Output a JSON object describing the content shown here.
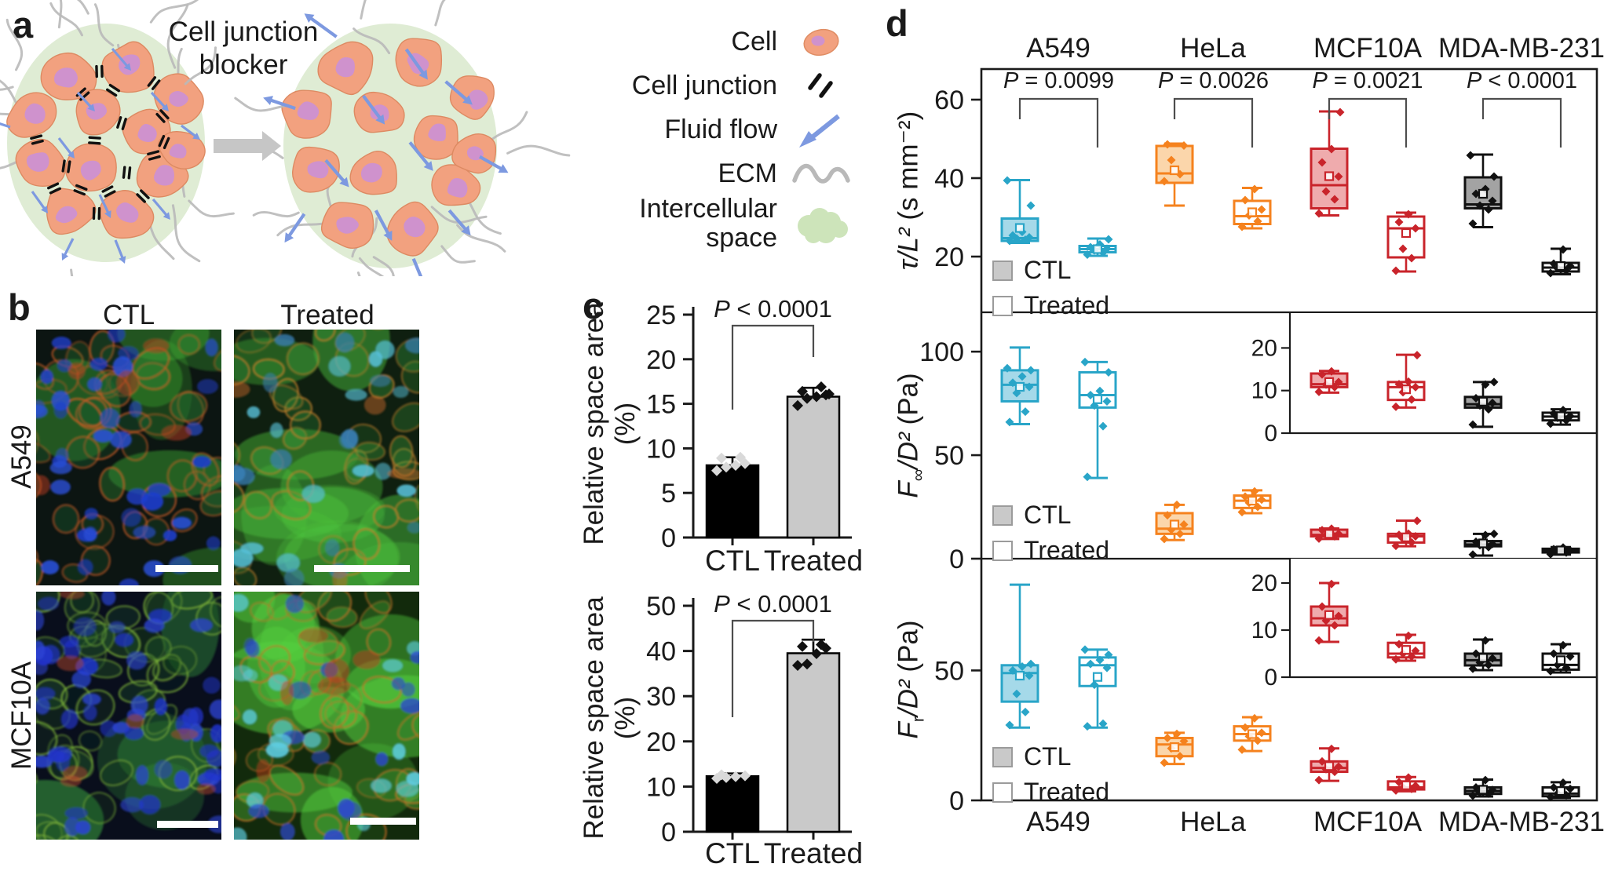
{
  "figure": {
    "panel_labels": {
      "a": "a",
      "b": "b",
      "c": "c",
      "d": "d"
    }
  },
  "panel_a": {
    "blocker_line1": "Cell junction",
    "blocker_line2": "blocker",
    "legend": [
      {
        "label": "Cell",
        "icon": "cell-icon"
      },
      {
        "label": "Cell junction",
        "icon": "cell-junction-icon"
      },
      {
        "label": "Fluid flow",
        "icon": "fluid-flow-arrow-icon"
      },
      {
        "label": "ECM",
        "icon": "ecm-squiggle-icon"
      },
      {
        "label": "Intercellular space",
        "icon": "intercellular-space-icon"
      }
    ],
    "colors": {
      "cell": "#f2a17f",
      "nucleus": "#cf92cd",
      "intercellular_space": "#dfecd4",
      "fluid_arrow": "#7d99e0",
      "ecm": "#b9b9b9",
      "junction": "#111111"
    }
  },
  "panel_b": {
    "col_headers": [
      "CTL",
      "Treated"
    ],
    "row_labels": [
      "A549",
      "MCF10A"
    ]
  },
  "panel_d": {
    "col_headers": [
      "A549",
      "HeLa",
      "MCF10A",
      "MDA-MB-231"
    ],
    "x_labels": [
      "A549",
      "HeLa",
      "MCF10A",
      "MDA-MB-231"
    ],
    "legend": {
      "ctl": "CTL",
      "treated": "Treated"
    },
    "rows_meta": [
      {
        "var": "τ/L²",
        "sub": "",
        "mid": "",
        "units": " (s mm⁻²)"
      },
      {
        "var": "F",
        "sub": "∞",
        "mid": "/D²",
        "units": " (Pa)"
      },
      {
        "var": "F",
        "sub": "r",
        "mid": "/D²",
        "units": " (Pa)"
      }
    ]
  },
  "chart_data": [
    {
      "type": "bar",
      "panel": "c-top",
      "categories": [
        "CTL",
        "Treated"
      ],
      "values": [
        8.1,
        15.8
      ],
      "errors": [
        0.9,
        1.0
      ],
      "points": [
        [
          7.5,
          7.9,
          8.1,
          8.3,
          8.9,
          9.0
        ],
        [
          14.8,
          15.6,
          15.8,
          16.0,
          16.4,
          16.9,
          16.1
        ]
      ],
      "bar_colors": [
        "#000000",
        "#c9c9c9"
      ],
      "point_colors": [
        "#d9d9d9",
        "#111111"
      ],
      "ylabel": "Relative space area (%)",
      "ylim": [
        0,
        25
      ],
      "yticks": [
        0,
        5,
        10,
        15,
        20,
        25
      ],
      "p_prefix": "P",
      "p_label": "< 0.0001"
    },
    {
      "type": "bar",
      "panel": "c-bottom",
      "categories": [
        "CTL",
        "Treated"
      ],
      "values": [
        12.3,
        39.5
      ],
      "errors": [
        0.6,
        3.0
      ],
      "points": [
        [
          11.8,
          12.0,
          12.2,
          12.4,
          12.6
        ],
        [
          36.8,
          37.1,
          39.4,
          40.6,
          41.0,
          41.4
        ]
      ],
      "bar_colors": [
        "#000000",
        "#c9c9c9"
      ],
      "point_colors": [
        "#d9d9d9",
        "#111111"
      ],
      "ylabel": "Relative space area (%)",
      "ylim": [
        0,
        50
      ],
      "yticks": [
        0,
        10,
        20,
        30,
        40,
        50
      ],
      "p_prefix": "P",
      "p_label": "< 0.0001"
    },
    {
      "type": "box",
      "panel": "d",
      "groups": [
        "A549",
        "HeLa",
        "MCF10A",
        "MDA-MB-231"
      ],
      "conditions": [
        "CTL",
        "Treated"
      ],
      "legend": [
        "CTL",
        "Treated"
      ],
      "colors": {
        "A549": {
          "line": "#29a5c8",
          "fill": "#a5d9e9"
        },
        "HeLa": {
          "line": "#f5821e",
          "fill": "#fbd6ab"
        },
        "MCF10A": {
          "line": "#c9242b",
          "fill": "#efabad"
        },
        "MDA-MB-231": {
          "line": "#111111",
          "fill": "#a3a3a3"
        }
      },
      "p_prefix": "P",
      "rows": [
        {
          "ylabel": "τ/L² (s mm⁻²)",
          "ylim": [
            5.8,
            67.8
          ],
          "yticks": [
            20,
            40,
            60
          ],
          "p_values": [
            "= 0.0099",
            "= 0.0026",
            "= 0.0021",
            "< 0.0001"
          ],
          "boxes": {
            "A549": {
              "CTL": {
                "lo": 23.5,
                "q1": 24,
                "med": 24.7,
                "q3": 29.7,
                "hi": 39.5,
                "mean": 27.3,
                "pts": [
                  24,
                  24.3,
                  24.6,
                  24.9,
                  25.4,
                  26.3,
                  33,
                  39.4
                ]
              },
              "Treated": {
                "lo": 20.2,
                "q1": 21.1,
                "med": 21.9,
                "q3": 22.7,
                "hi": 24.6,
                "mean": 21.9,
                "pts": [
                  20.5,
                  21,
                  21.6,
                  22,
                  22.4,
                  23.1,
                  24.4
                ]
              }
            },
            "HeLa": {
              "CTL": {
                "lo": 33,
                "q1": 38.8,
                "med": 41.2,
                "q3": 48.2,
                "hi": 48.8,
                "mean": 42,
                "pts": [
                  39.2,
                  41,
                  44.6,
                  48.3,
                  48.6
                ]
              },
              "Treated": {
                "lo": 27.2,
                "q1": 28.3,
                "med": 30.3,
                "q3": 34.2,
                "hi": 37.5,
                "mean": 31.3,
                "pts": [
                  27.6,
                  29,
                  30.5,
                  32,
                  34.4,
                  37.2
                ]
              }
            },
            "MCF10A": {
              "CTL": {
                "lo": 30.5,
                "q1": 32.3,
                "med": 38.2,
                "q3": 47.5,
                "hi": 57,
                "mean": 40.5,
                "pts": [
                  31,
                  34.6,
                  36.6,
                  40.4,
                  44,
                  47.4,
                  56.8
                ]
              },
              "Treated": {
                "lo": 16.2,
                "q1": 19.8,
                "med": 27.2,
                "q3": 30.2,
                "hi": 31.2,
                "mean": 26,
                "pts": [
                  16.4,
                  19.6,
                  22,
                  27.2,
                  28.8,
                  30.8
                ]
              }
            },
            "MDA-MB-231": {
              "CTL": {
                "lo": 27.5,
                "q1": 32.3,
                "med": 33.3,
                "q3": 40.2,
                "hi": 46,
                "mean": 36,
                "pts": [
                  28.4,
                  32,
                  33,
                  34.2,
                  36,
                  37.2,
                  40.4,
                  45.8
                ]
              },
              "Treated": {
                "lo": 15.5,
                "q1": 16.2,
                "med": 17.2,
                "q3": 18.4,
                "hi": 22,
                "mean": 17.6,
                "pts": [
                  15.8,
                  16.4,
                  17,
                  17.6,
                  18.2,
                  21.8
                ]
              }
            }
          }
        },
        {
          "ylabel": "F∞/D² (Pa)",
          "ylim": [
            0,
            119
          ],
          "yticks": [
            0,
            50,
            100
          ],
          "inset": {
            "groups": [
              "MCF10A",
              "MDA-MB-231"
            ],
            "ylim": [
              0,
              28
            ],
            "yticks": [
              0,
              10,
              20
            ]
          },
          "boxes": {
            "A549": {
              "CTL": {
                "lo": 65,
                "q1": 76,
                "med": 84,
                "q3": 91,
                "hi": 102,
                "mean": 83,
                "pts": [
                  66,
                  71,
                  80,
                  83,
                  85,
                  88,
                  91,
                  92
                ]
              },
              "Treated": {
                "lo": 39,
                "q1": 73,
                "med": 79,
                "q3": 90,
                "hi": 95,
                "mean": 77,
                "pts": [
                  39.5,
                  64,
                  74,
                  76,
                  79,
                  81,
                  90,
                  95
                ]
              }
            },
            "HeLa": {
              "CTL": {
                "lo": 9,
                "q1": 12,
                "med": 14.5,
                "q3": 22,
                "hi": 26,
                "mean": 16.5,
                "pts": [
                  9.5,
                  12,
                  14,
                  16.5,
                  21,
                  26
                ]
              },
              "Treated": {
                "lo": 22,
                "q1": 24.5,
                "med": 28,
                "q3": 30.5,
                "hi": 33,
                "mean": 28,
                "pts": [
                  22.5,
                  25,
                  27,
                  28.5,
                  30,
                  32.5
                ]
              }
            },
            "MCF10A": {
              "CTL": {
                "lo": 9.5,
                "q1": 10.8,
                "med": 11.5,
                "q3": 14,
                "hi": 14.6,
                "mean": 12,
                "pts": [
                  9.7,
                  10.8,
                  11.4,
                  12,
                  13.8,
                  14.5
                ]
              },
              "Treated": {
                "lo": 6,
                "q1": 7.8,
                "med": 10.8,
                "q3": 12,
                "hi": 18.4,
                "mean": 10.3,
                "pts": [
                  6.2,
                  7.9,
                  9.6,
                  10.8,
                  11.5,
                  12.1,
                  18.3
                ]
              }
            },
            "MDA-MB-231": {
              "CTL": {
                "lo": 1.5,
                "q1": 6,
                "med": 6.8,
                "q3": 8.5,
                "hi": 12,
                "mean": 7.4,
                "pts": [
                  2,
                  5.6,
                  6.5,
                  7.1,
                  8.2,
                  11.4,
                  12
                ]
              },
              "Treated": {
                "lo": 2,
                "q1": 3,
                "med": 3.9,
                "q3": 4.8,
                "hi": 5.6,
                "mean": 4,
                "pts": [
                  2.2,
                  3,
                  3.6,
                  4,
                  4.6,
                  5.4
                ]
              }
            }
          }
        },
        {
          "ylabel": "Fr/D² (Pa)",
          "ylim": [
            0,
            93
          ],
          "yticks": [
            0,
            50
          ],
          "inset": {
            "groups": [
              "MCF10A",
              "MDA-MB-231"
            ],
            "ylim": [
              0,
              25
            ],
            "yticks": [
              0,
              10,
              20
            ]
          },
          "boxes": {
            "A549": {
              "CTL": {
                "lo": 28,
                "q1": 38,
                "med": 49,
                "q3": 52,
                "hi": 83,
                "mean": 48,
                "pts": [
                  29,
                  34,
                  41,
                  48,
                  50,
                  51.5,
                  52.5
                ]
              },
              "Treated": {
                "lo": 28,
                "q1": 44,
                "med": 52,
                "q3": 55,
                "hi": 58,
                "mean": 47.5,
                "pts": [
                  28.5,
                  29.5,
                  44.5,
                  51,
                  52.5,
                  54,
                  56,
                  58
                ]
              }
            },
            "HeLa": {
              "CTL": {
                "lo": 14,
                "q1": 17,
                "med": 21.5,
                "q3": 24,
                "hi": 26,
                "mean": 20.5,
                "pts": [
                  14.5,
                  17,
                  20,
                  22.8,
                  24,
                  25.6
                ]
              },
              "Treated": {
                "lo": 19,
                "q1": 23,
                "med": 25.5,
                "q3": 28.5,
                "hi": 32,
                "mean": 25.5,
                "pts": [
                  19.5,
                  23,
                  24.6,
                  26,
                  28,
                  31.6
                ]
              }
            },
            "MCF10A": {
              "CTL": {
                "lo": 7.5,
                "q1": 11,
                "med": 12.5,
                "q3": 15,
                "hi": 20,
                "mean": 13.2,
                "pts": [
                  7.8,
                  11,
                  12,
                  13,
                  15,
                  19.8
                ]
              },
              "Treated": {
                "lo": 3.5,
                "q1": 4.2,
                "med": 5,
                "q3": 7.3,
                "hi": 9,
                "mean": 5.8,
                "pts": [
                  3.8,
                  4.4,
                  5,
                  5.6,
                  7,
                  8.8
                ]
              }
            },
            "MDA-MB-231": {
              "CTL": {
                "lo": 1.5,
                "q1": 2.5,
                "med": 3.6,
                "q3": 5,
                "hi": 8,
                "mean": 4.1,
                "pts": [
                  1.8,
                  2.6,
                  3.1,
                  4,
                  5,
                  7.8
                ]
              },
              "Treated": {
                "lo": 1,
                "q1": 1.6,
                "med": 2.6,
                "q3": 5,
                "hi": 7,
                "mean": 3.6,
                "pts": [
                  1.3,
                  2,
                  2.6,
                  4.4,
                  5,
                  6.8
                ]
              }
            }
          }
        }
      ]
    }
  ]
}
